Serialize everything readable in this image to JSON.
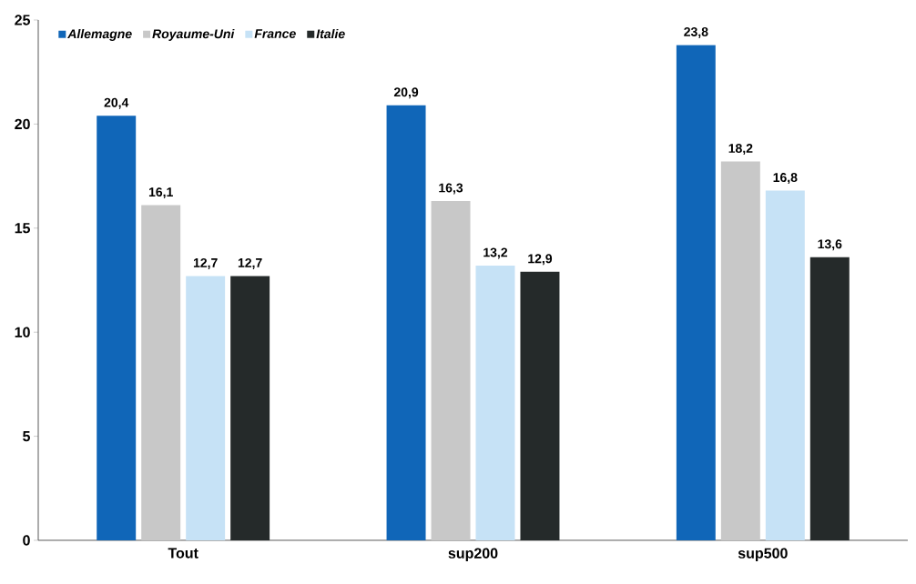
{
  "chart_data": {
    "type": "bar",
    "categories": [
      "Tout",
      "sup200",
      "sup500"
    ],
    "series": [
      {
        "name": "Allemagne",
        "color": "#1066b8",
        "values": [
          20.4,
          20.9,
          23.8
        ],
        "value_labels": [
          "20,4",
          "20,9",
          "23,8"
        ]
      },
      {
        "name": "Royaume-Uni",
        "color": "#c8c8c8",
        "values": [
          16.1,
          16.3,
          18.2
        ],
        "value_labels": [
          "16,1",
          "16,3",
          "18,2"
        ]
      },
      {
        "name": "France",
        "color": "#c6e2f6",
        "values": [
          12.7,
          13.2,
          16.8
        ],
        "value_labels": [
          "12,7",
          "13,2",
          "16,8"
        ]
      },
      {
        "name": "Italie",
        "color": "#252a2a",
        "values": [
          12.7,
          12.9,
          13.6
        ],
        "value_labels": [
          "12,7",
          "12,9",
          "13,6"
        ]
      }
    ],
    "ylim": [
      0,
      25
    ],
    "yticks": [
      0,
      5,
      10,
      15,
      20,
      25
    ],
    "grid": false,
    "legend": "top left"
  }
}
